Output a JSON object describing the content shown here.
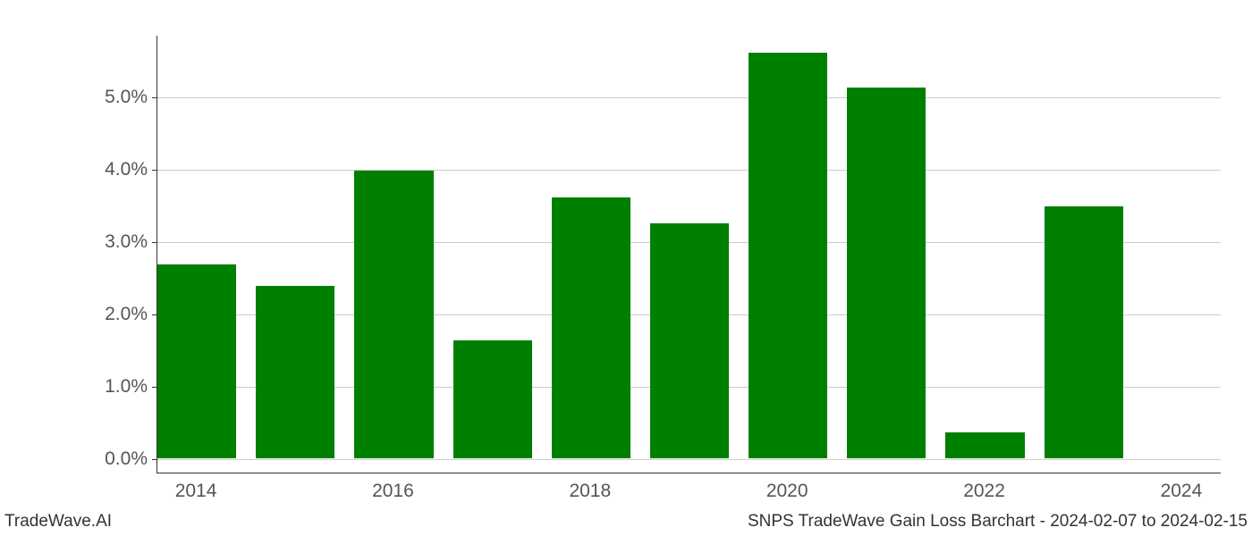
{
  "chart": {
    "type": "bar",
    "years": [
      2014,
      2015,
      2016,
      2017,
      2018,
      2019,
      2020,
      2021,
      2022,
      2023,
      2024
    ],
    "values": [
      2.68,
      2.38,
      3.97,
      1.63,
      3.6,
      3.25,
      5.6,
      5.12,
      0.35,
      3.48,
      0.0
    ],
    "bar_color": "#008000",
    "background_color": "#ffffff",
    "grid_color": "#cccccc",
    "axis_color": "#333333",
    "label_color": "#555555",
    "y_ticks": [
      0,
      1,
      2,
      3,
      4,
      5
    ],
    "y_tick_labels": [
      "0.0%",
      "1.0%",
      "2.0%",
      "3.0%",
      "4.0%",
      "5.0%"
    ],
    "x_tick_years": [
      2014,
      2016,
      2018,
      2020,
      2022,
      2024
    ],
    "x_tick_labels": [
      "2014",
      "2016",
      "2018",
      "2020",
      "2022",
      "2024"
    ],
    "ylim_min": -0.2,
    "ylim_max": 5.85,
    "x_start": 2013.6,
    "x_end": 2024.4,
    "bar_width": 0.8,
    "label_fontsize": 21,
    "footer_fontsize": 19
  },
  "footer": {
    "left": "TradeWave.AI",
    "right": "SNPS TradeWave Gain Loss Barchart - 2024-02-07 to 2024-02-15"
  }
}
